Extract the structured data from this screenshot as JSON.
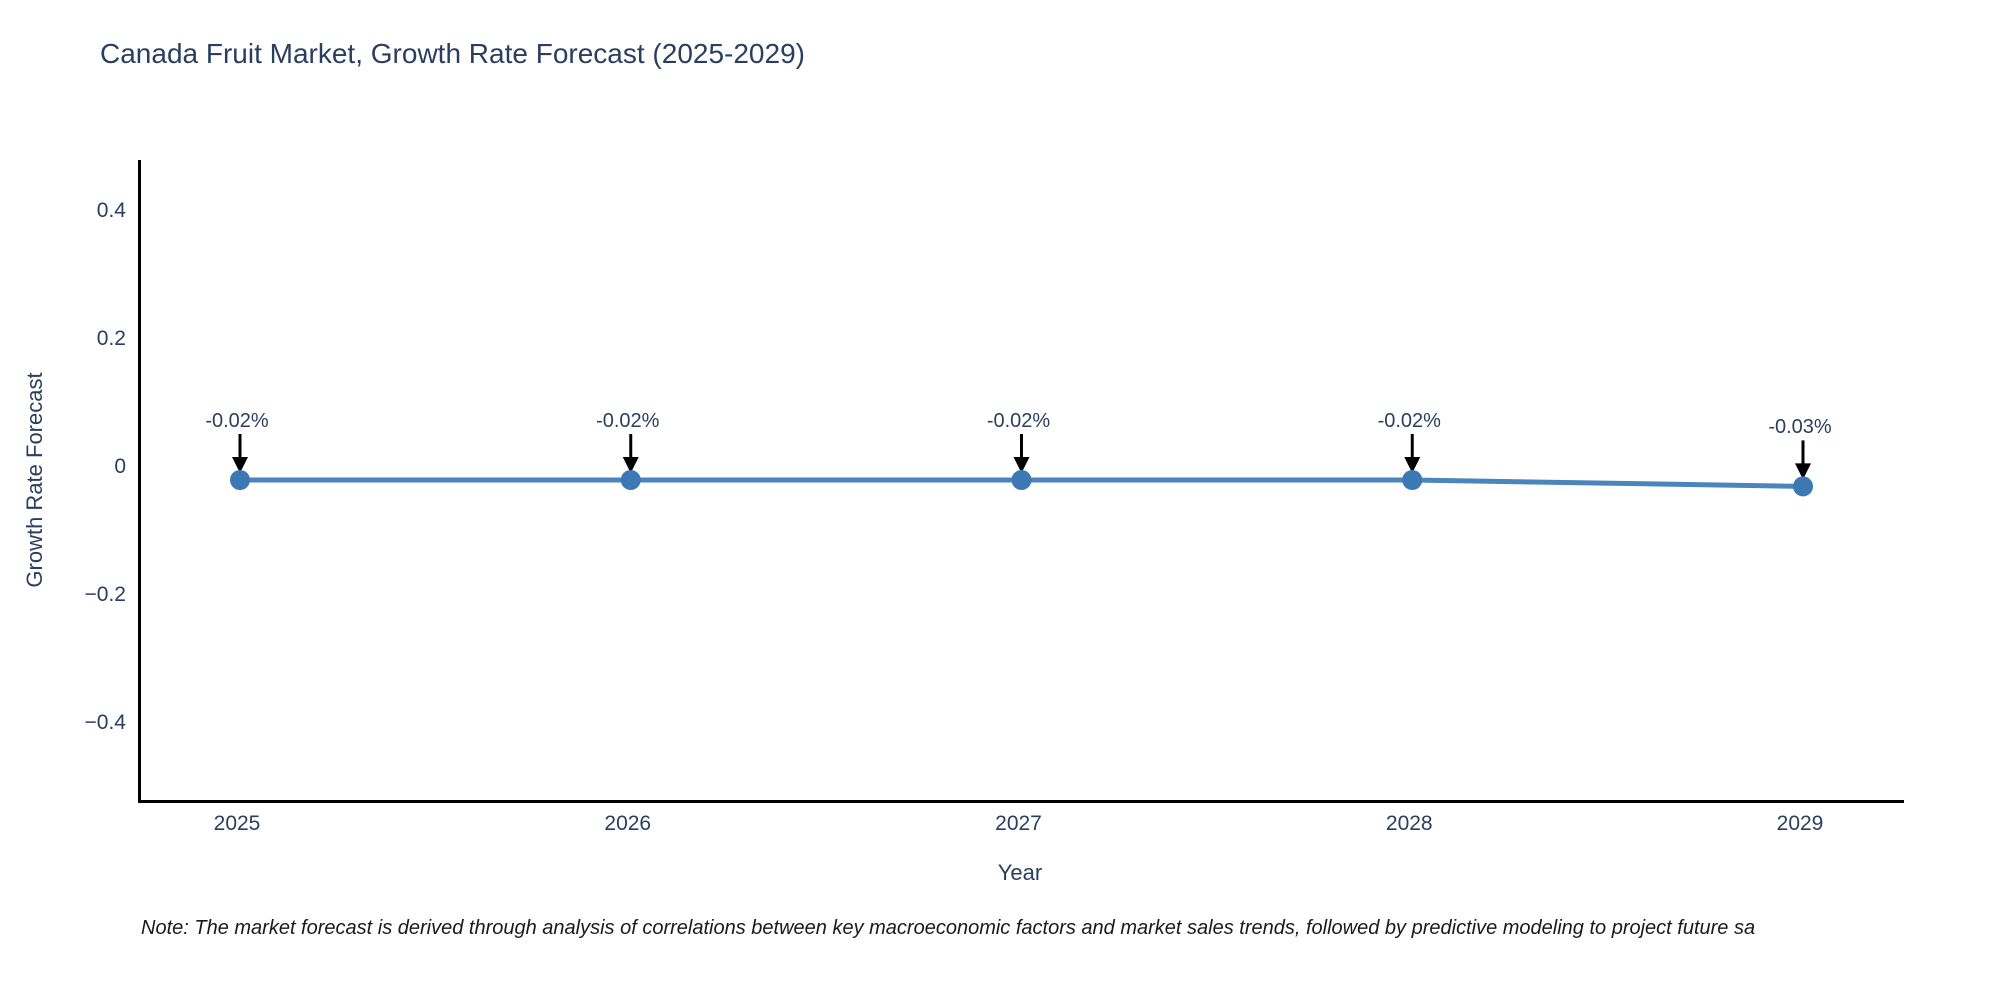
{
  "figure": {
    "note": "Note: The market forecast is derived through analysis of correlations between key macroeconomic factors and market sales trends, followed by predictive modeling to project future sa"
  },
  "chart_data": {
    "type": "line",
    "title": "Canada Fruit Market, Growth Rate Forecast (2025-2029)",
    "xlabel": "Year",
    "ylabel": "Growth Rate Forecast",
    "categories": [
      "2025",
      "2026",
      "2027",
      "2028",
      "2029"
    ],
    "series": [
      {
        "name": "Growth Rate Forecast",
        "values": [
          -0.02,
          -0.02,
          -0.02,
          -0.02,
          -0.03
        ],
        "point_labels": [
          "-0.02%",
          "-0.02%",
          "-0.02%",
          "-0.02%",
          "-0.03%"
        ]
      }
    ],
    "ytick_values": [
      0.4,
      0.2,
      0,
      -0.2,
      -0.4
    ],
    "ytick_labels": [
      "0.4",
      "0.2",
      "0",
      "−0.2",
      "−0.4"
    ],
    "ylim": [
      -0.52,
      0.48
    ],
    "grid": false,
    "legend": "none",
    "annotation_arrows": true,
    "colors": {
      "line": "#4a85bb",
      "marker": "#3c79b4",
      "arrow": "#000000",
      "axis_line": "#000000",
      "text": "#2a3f5f"
    }
  }
}
